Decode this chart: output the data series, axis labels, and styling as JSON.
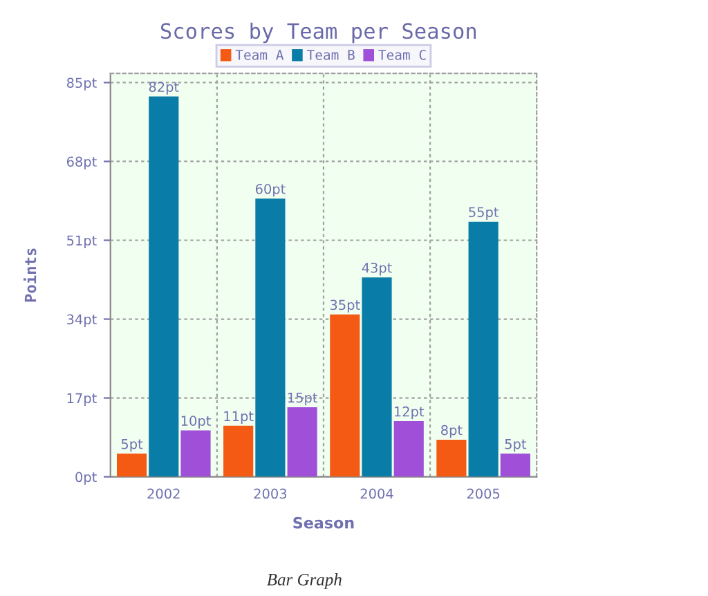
{
  "chart_data": {
    "type": "bar",
    "title": "Scores by Team per Season",
    "xlabel": "Season",
    "ylabel": "Points",
    "categories": [
      "2002",
      "2003",
      "2004",
      "2005"
    ],
    "series": [
      {
        "name": "Team A",
        "color": "#f55a14",
        "values": [
          5,
          11,
          35,
          8
        ],
        "value_labels": [
          "5pt",
          "11pt",
          "35pt",
          "8pt"
        ]
      },
      {
        "name": "Team B",
        "color": "#0a7ca8",
        "values": [
          82,
          60,
          43,
          55
        ],
        "value_labels": [
          "82pt",
          "60pt",
          "43pt",
          "55pt"
        ]
      },
      {
        "name": "Team C",
        "color": "#a050d8",
        "values": [
          10,
          15,
          12,
          5
        ],
        "value_labels": [
          "10pt",
          "15pt",
          "12pt",
          "5pt"
        ]
      }
    ],
    "ylim": [
      0,
      87
    ],
    "yticks": [
      {
        "value": 0,
        "label": "0pt"
      },
      {
        "value": 17,
        "label": "17pt"
      },
      {
        "value": 34,
        "label": "34pt"
      },
      {
        "value": 51,
        "label": "51pt"
      },
      {
        "value": 68,
        "label": "68pt"
      },
      {
        "value": 85,
        "label": "85pt"
      }
    ],
    "grid": true,
    "legend": "top",
    "annotations": [
      "Bar Graph"
    ]
  }
}
